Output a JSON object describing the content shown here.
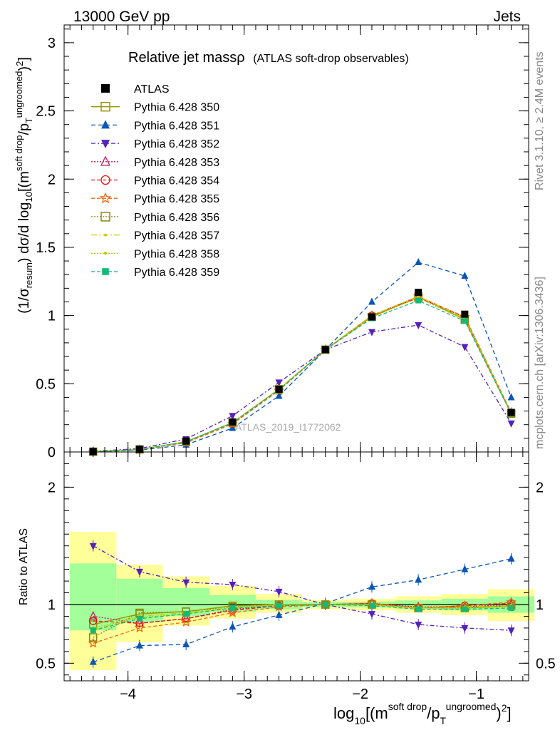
{
  "header": {
    "left": "13000 GeV pp",
    "right": "Jets"
  },
  "side": {
    "rivet": "Rivet 3.1.10, ≥ 2.4M events",
    "mcplots": "mcplots.cern.ch [arXiv:1306.3436]"
  },
  "watermark": "ATLAS_2019_I1772062",
  "main_title": {
    "main": "Relative jet massρ",
    "sub": "(ATLAS soft-drop observables)"
  },
  "ylabel_main": "(1/σresum) dσ/d log10[(m soft drop/pT ungroomed)2]",
  "ylabel_ratio": "Ratio to ATLAS",
  "xlabel": "log10[(m soft drop/pT ungroomed)2]",
  "chart_data": [
    {
      "type": "line",
      "panel": "main",
      "x": [
        -4.3,
        -3.9,
        -3.5,
        -3.1,
        -2.7,
        -2.3,
        -1.9,
        -1.5,
        -1.1,
        -0.7
      ],
      "x_ticks": [
        -4,
        -3,
        -2,
        -1
      ],
      "x_tick_labels": [
        "−4",
        "−3",
        "−2",
        "−1"
      ],
      "xlim": [
        -4.55,
        -0.55
      ],
      "ylim": [
        0,
        3.13
      ],
      "y_ticks": [
        0,
        0.5,
        1,
        1.5,
        2,
        2.5,
        3
      ],
      "y_tick_labels": [
        "0",
        "0.5",
        "1",
        "1.5",
        "2",
        "2.5",
        "3"
      ],
      "series": [
        {
          "name": "ATLAS",
          "color": "#000000",
          "style": "data",
          "values": [
            0.003,
            0.02,
            0.08,
            0.22,
            0.46,
            0.75,
            0.99,
            1.17,
            1.01,
            0.29
          ]
        },
        {
          "name": "Pythia 6.428 350",
          "color": "#999900",
          "dash": "",
          "marker": "square-open",
          "values": [
            0.002,
            0.019,
            0.075,
            0.215,
            0.46,
            0.75,
            0.99,
            1.14,
            0.97,
            0.28
          ]
        },
        {
          "name": "Pythia 6.428 351",
          "color": "#0b55b7",
          "dash": "6,4",
          "marker": "triangle-up",
          "values": [
            0.0015,
            0.013,
            0.053,
            0.175,
            0.41,
            0.75,
            1.1,
            1.39,
            1.29,
            0.4
          ]
        },
        {
          "name": "Pythia 6.428 352",
          "color": "#5522bb",
          "dash": "6,3,2,3",
          "marker": "triangle-down",
          "values": [
            0.0045,
            0.025,
            0.095,
            0.265,
            0.51,
            0.75,
            0.88,
            0.93,
            0.77,
            0.21
          ]
        },
        {
          "name": "Pythia 6.428 353",
          "color": "#bb2266",
          "dash": "2,2",
          "marker": "triangle-open",
          "values": [
            0.0027,
            0.017,
            0.07,
            0.215,
            0.46,
            0.75,
            1.0,
            1.14,
            0.98,
            0.28
          ]
        },
        {
          "name": "Pythia 6.428 354",
          "color": "#dd1111",
          "dash": "5,3",
          "marker": "circle-open",
          "values": [
            0.0026,
            0.017,
            0.07,
            0.21,
            0.455,
            0.75,
            1.0,
            1.13,
            0.99,
            0.285
          ]
        },
        {
          "name": "Pythia 6.428 355",
          "color": "#ee6611",
          "dash": "5,3",
          "marker": "star-open",
          "values": [
            0.002,
            0.016,
            0.068,
            0.205,
            0.45,
            0.75,
            1.0,
            1.14,
            0.99,
            0.29
          ]
        },
        {
          "name": "Pythia 6.428 356",
          "color": "#888811",
          "dash": "2,2",
          "marker": "square-open",
          "values": [
            0.0022,
            0.019,
            0.075,
            0.215,
            0.46,
            0.75,
            0.99,
            1.13,
            0.97,
            0.285
          ]
        },
        {
          "name": "Pythia 6.428 357",
          "color": "#cccc00",
          "dash": "8,3,2,3",
          "marker": "dot",
          "values": [
            0.0024,
            0.018,
            0.074,
            0.214,
            0.46,
            0.75,
            1.0,
            1.14,
            0.98,
            0.285
          ]
        },
        {
          "name": "Pythia 6.428 358",
          "color": "#aacc00",
          "dash": "2,2",
          "marker": "dot",
          "values": [
            0.0025,
            0.018,
            0.073,
            0.213,
            0.46,
            0.75,
            0.99,
            1.13,
            0.97,
            0.28
          ]
        },
        {
          "name": "Pythia 6.428 359",
          "color": "#11bb77",
          "dash": "5,3",
          "marker": "square-filled",
          "values": [
            0.0023,
            0.018,
            0.074,
            0.214,
            0.455,
            0.75,
            0.98,
            1.11,
            0.96,
            0.28
          ]
        }
      ]
    },
    {
      "type": "line",
      "panel": "ratio",
      "x": [
        -4.3,
        -3.9,
        -3.5,
        -3.1,
        -2.7,
        -2.3,
        -1.9,
        -1.5,
        -1.1,
        -0.7
      ],
      "xlim": [
        -4.55,
        -0.55
      ],
      "ylim": [
        0.35,
        2.3
      ],
      "y_ticks": [
        0.5,
        1,
        2
      ],
      "y_tick_labels": [
        "0.5",
        "1",
        "2"
      ],
      "bands": {
        "edges": [
          -4.5,
          -4.1,
          -3.7,
          -3.3,
          -2.9,
          -2.5,
          -2.1,
          -1.7,
          -1.3,
          -0.9,
          -0.5
        ],
        "yellow_low": [
          0.44,
          0.68,
          0.82,
          0.88,
          0.93,
          0.96,
          0.95,
          0.93,
          0.91,
          0.86
        ],
        "yellow_high": [
          1.62,
          1.34,
          1.24,
          1.16,
          1.09,
          1.04,
          1.05,
          1.07,
          1.09,
          1.13
        ],
        "green_low": [
          0.78,
          0.85,
          0.9,
          0.94,
          0.96,
          0.98,
          0.975,
          0.965,
          0.95,
          0.93
        ],
        "green_high": [
          1.35,
          1.22,
          1.14,
          1.08,
          1.04,
          1.02,
          1.025,
          1.035,
          1.05,
          1.07
        ]
      },
      "series": [
        {
          "name": "Pythia 6.428 350",
          "values": [
            0.83,
            0.92,
            0.94,
            0.99,
            1.0,
            1.0,
            1.0,
            0.97,
            0.97,
            0.99
          ]
        },
        {
          "name": "Pythia 6.428 351",
          "values": [
            0.51,
            0.65,
            0.66,
            0.81,
            0.91,
            1.01,
            1.15,
            1.21,
            1.3,
            1.39
          ]
        },
        {
          "name": "Pythia 6.428 352",
          "values": [
            1.5,
            1.28,
            1.19,
            1.17,
            1.11,
            1.0,
            0.92,
            0.83,
            0.8,
            0.78
          ]
        },
        {
          "name": "Pythia 6.428 353",
          "values": [
            0.9,
            0.84,
            0.88,
            0.96,
            0.99,
            1.0,
            1.01,
            0.98,
            0.98,
            1.0
          ]
        },
        {
          "name": "Pythia 6.428 354",
          "values": [
            0.86,
            0.84,
            0.88,
            0.95,
            0.99,
            1.0,
            1.01,
            0.97,
            0.99,
            1.01
          ]
        },
        {
          "name": "Pythia 6.428 355",
          "values": [
            0.67,
            0.8,
            0.85,
            0.93,
            0.98,
            1.0,
            1.01,
            0.97,
            0.99,
            1.02
          ]
        },
        {
          "name": "Pythia 6.428 356",
          "values": [
            0.72,
            0.93,
            0.94,
            0.98,
            1.0,
            1.0,
            1.0,
            0.97,
            0.97,
            0.99
          ]
        },
        {
          "name": "Pythia 6.428 357",
          "values": [
            0.78,
            0.9,
            0.93,
            0.98,
            1.0,
            1.0,
            1.0,
            0.97,
            0.98,
            0.99
          ]
        },
        {
          "name": "Pythia 6.428 358",
          "values": [
            0.8,
            0.89,
            0.92,
            0.97,
            1.0,
            1.0,
            1.0,
            0.97,
            0.97,
            0.98
          ]
        },
        {
          "name": "Pythia 6.428 359",
          "values": [
            0.78,
            0.88,
            0.92,
            0.97,
            0.99,
            1.0,
            0.99,
            0.96,
            0.96,
            0.97
          ]
        }
      ]
    }
  ]
}
